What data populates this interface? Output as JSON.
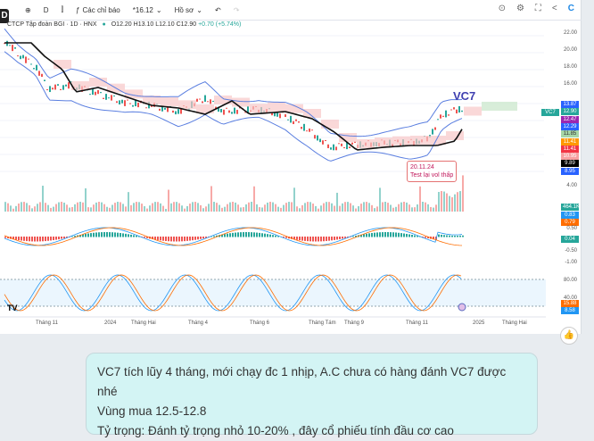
{
  "toolbar": {
    "interval": "D",
    "indicators": "Các chỉ báo",
    "price_dropdown": "*16.12",
    "profile": "Hồ sơ"
  },
  "legend": {
    "symbol": "CTCP Tập đoàn BGI · 1D · HNX",
    "o": "O12.20",
    "h": "H13.10",
    "l": "L12.10",
    "c": "C12.90",
    "chg": "+0.70 (+5.74%)"
  },
  "price_axis": [
    "22.00",
    "20.00",
    "18.00",
    "16.00"
  ],
  "price_tags": [
    {
      "v": "13.87",
      "c": "#2962ff"
    },
    {
      "v": "12.90",
      "c": "#26a69a"
    },
    {
      "v": "12.47",
      "c": "#9c27b0"
    },
    {
      "v": "12.29",
      "c": "#2962ff"
    },
    {
      "v": "11.85",
      "c": "#a5d6a7"
    },
    {
      "v": "11.41",
      "c": "#ff9800"
    },
    {
      "v": "11.41",
      "c": "#f23645"
    },
    {
      "v": "10.95",
      "c": "#f7a0a0"
    },
    {
      "v": "9.89",
      "c": "#000000"
    },
    {
      "v": "8.95",
      "c": "#2962ff"
    }
  ],
  "symbol_tag": "VC7",
  "volume": {
    "axis": "4.00",
    "tag": "464.1K"
  },
  "macd": {
    "tags": [
      {
        "v": "0.83",
        "c": "#2196f3"
      },
      {
        "v": "0.79",
        "c": "#ff6d00"
      },
      {
        "v": "0.04",
        "c": "#26a69a"
      }
    ],
    "axis": [
      "0.50",
      "-0.50",
      "-1.00"
    ]
  },
  "stoch": {
    "axis": [
      "80.00",
      "40.00",
      "0.00"
    ],
    "tags": [
      {
        "v": "15.88",
        "c": "#ff6d00"
      },
      {
        "v": "8.58",
        "c": "#2196f3"
      }
    ]
  },
  "dates": [
    "Tháng 11",
    "2024",
    "Tháng Hai",
    "Tháng 4",
    "Tháng 6",
    "Tháng Tám",
    "Tháng 9",
    "Tháng 11",
    "2025",
    "Tháng Hai"
  ],
  "annotations": {
    "title": "VC7",
    "note_date": "20.11.24",
    "note_text": "Test lại vol thấp"
  },
  "message": {
    "line1": "VC7 tích lũy  4 tháng, mới chạy đc 1 nhịp, A.C chưa có hàng đánh VC7 được nhé",
    "line2": "Vùng mua 12.5-12.8",
    "line3": "Tỷ trọng: Đánh tỷ trọng nhỏ 10-20% , đây cổ phiếu tính đầu cơ cao"
  }
}
